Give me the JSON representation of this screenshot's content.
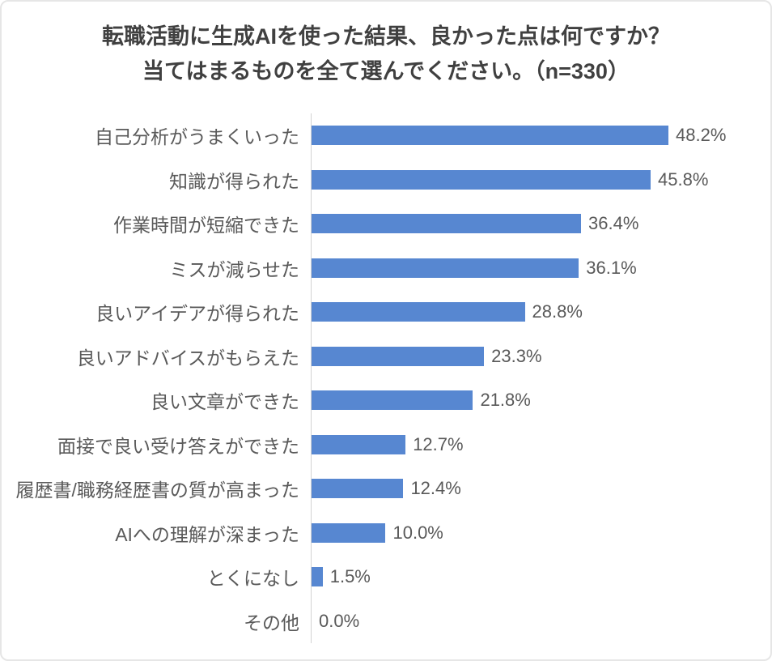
{
  "title": {
    "line1": "転職活動に生成AIを使った結果、良かった点は何ですか？",
    "line2": "当てはまるものを全て選んでください。（n=330）"
  },
  "chart_data": {
    "type": "bar",
    "orientation": "horizontal",
    "title": "転職活動に生成AIを使った結果、良かった点は何ですか？ 当てはまるものを全て選んでください。（n=330）",
    "sample_size_label": "n=330",
    "categories": [
      "自己分析がうまくいった",
      "知識が得られた",
      "作業時間が短縮できた",
      "ミスが減らせた",
      "良いアイデアが得られた",
      "良いアドバイスがもらえた",
      "良い文章ができた",
      "面接で良い受け答えができた",
      "履歴書/職務経歴書の質が高まった",
      "AIへの理解が深まった",
      "とくになし",
      "その他"
    ],
    "values": [
      48.2,
      45.8,
      36.4,
      36.1,
      28.8,
      23.3,
      21.8,
      12.7,
      12.4,
      10.0,
      1.5,
      0.0
    ],
    "value_labels": [
      "48.2%",
      "45.8%",
      "36.4%",
      "36.1%",
      "28.8%",
      "23.3%",
      "21.8%",
      "12.7%",
      "12.4%",
      "10.0%",
      "1.5%",
      "0.0%"
    ],
    "bar_color": "#5787D1",
    "axis_color": "#d2d2d2",
    "label_color": "#595959",
    "title_color": "#404040",
    "xlim": [
      0,
      52
    ],
    "grid": false,
    "legend": false,
    "data_labels": true
  }
}
